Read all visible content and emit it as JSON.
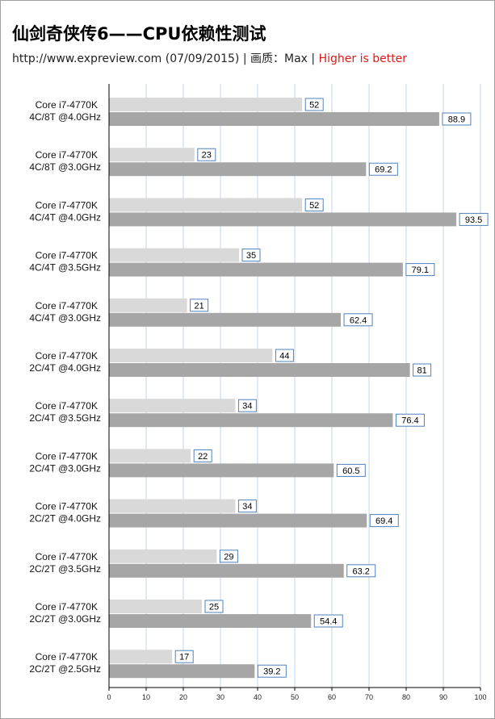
{
  "header": {
    "title": "仙剑奇侠传6——CPU依赖性测试",
    "source": "http://www.expreview.com (07/09/2015)",
    "sep1": " | ",
    "quality": "画质：Max",
    "sep2": "  | ",
    "note": "Higher  is better"
  },
  "colors": {
    "series_light": "#d9d9d9",
    "series_dark": "#a6a6a6",
    "grid": "#c5d5e8",
    "label_border": "#4f81bd",
    "accent": "#e01a1a"
  },
  "chart_data": {
    "type": "bar",
    "orientation": "horizontal",
    "categories": [
      [
        "Core i7-4770K",
        "4C/8T @4.0GHz"
      ],
      [
        "Core i7-4770K",
        "4C/8T @3.0GHz"
      ],
      [
        "Core i7-4770K",
        "4C/4T @4.0GHz"
      ],
      [
        "Core i7-4770K",
        "4C/4T @3.5GHz"
      ],
      [
        "Core i7-4770K",
        "4C/4T @3.0GHz"
      ],
      [
        "Core i7-4770K",
        "2C/4T @4.0GHz"
      ],
      [
        "Core i7-4770K",
        "2C/4T @3.5GHz"
      ],
      [
        "Core i7-4770K",
        "2C/4T @3.0GHz"
      ],
      [
        "Core i7-4770K",
        "2C/2T @4.0GHz"
      ],
      [
        "Core i7-4770K",
        "2C/2T @3.5GHz"
      ],
      [
        "Core i7-4770K",
        "2C/2T @3.0GHz"
      ],
      [
        "Core i7-4770K",
        "2C/2T @2.5GHz"
      ]
    ],
    "series": [
      {
        "color": "#d9d9d9",
        "values": [
          52,
          23,
          52,
          35,
          21,
          44,
          34,
          22,
          34,
          29,
          25,
          17
        ]
      },
      {
        "color": "#a6a6a6",
        "values": [
          88.9,
          69.2,
          93.5,
          79.1,
          62.4,
          81,
          76.4,
          60.5,
          69.4,
          63.2,
          54.4,
          39.2
        ]
      }
    ],
    "xlim": [
      0,
      100
    ],
    "xticks": [
      0,
      10,
      20,
      30,
      40,
      50,
      60,
      70,
      80,
      90,
      100
    ],
    "grid": true,
    "data_labels": true
  }
}
